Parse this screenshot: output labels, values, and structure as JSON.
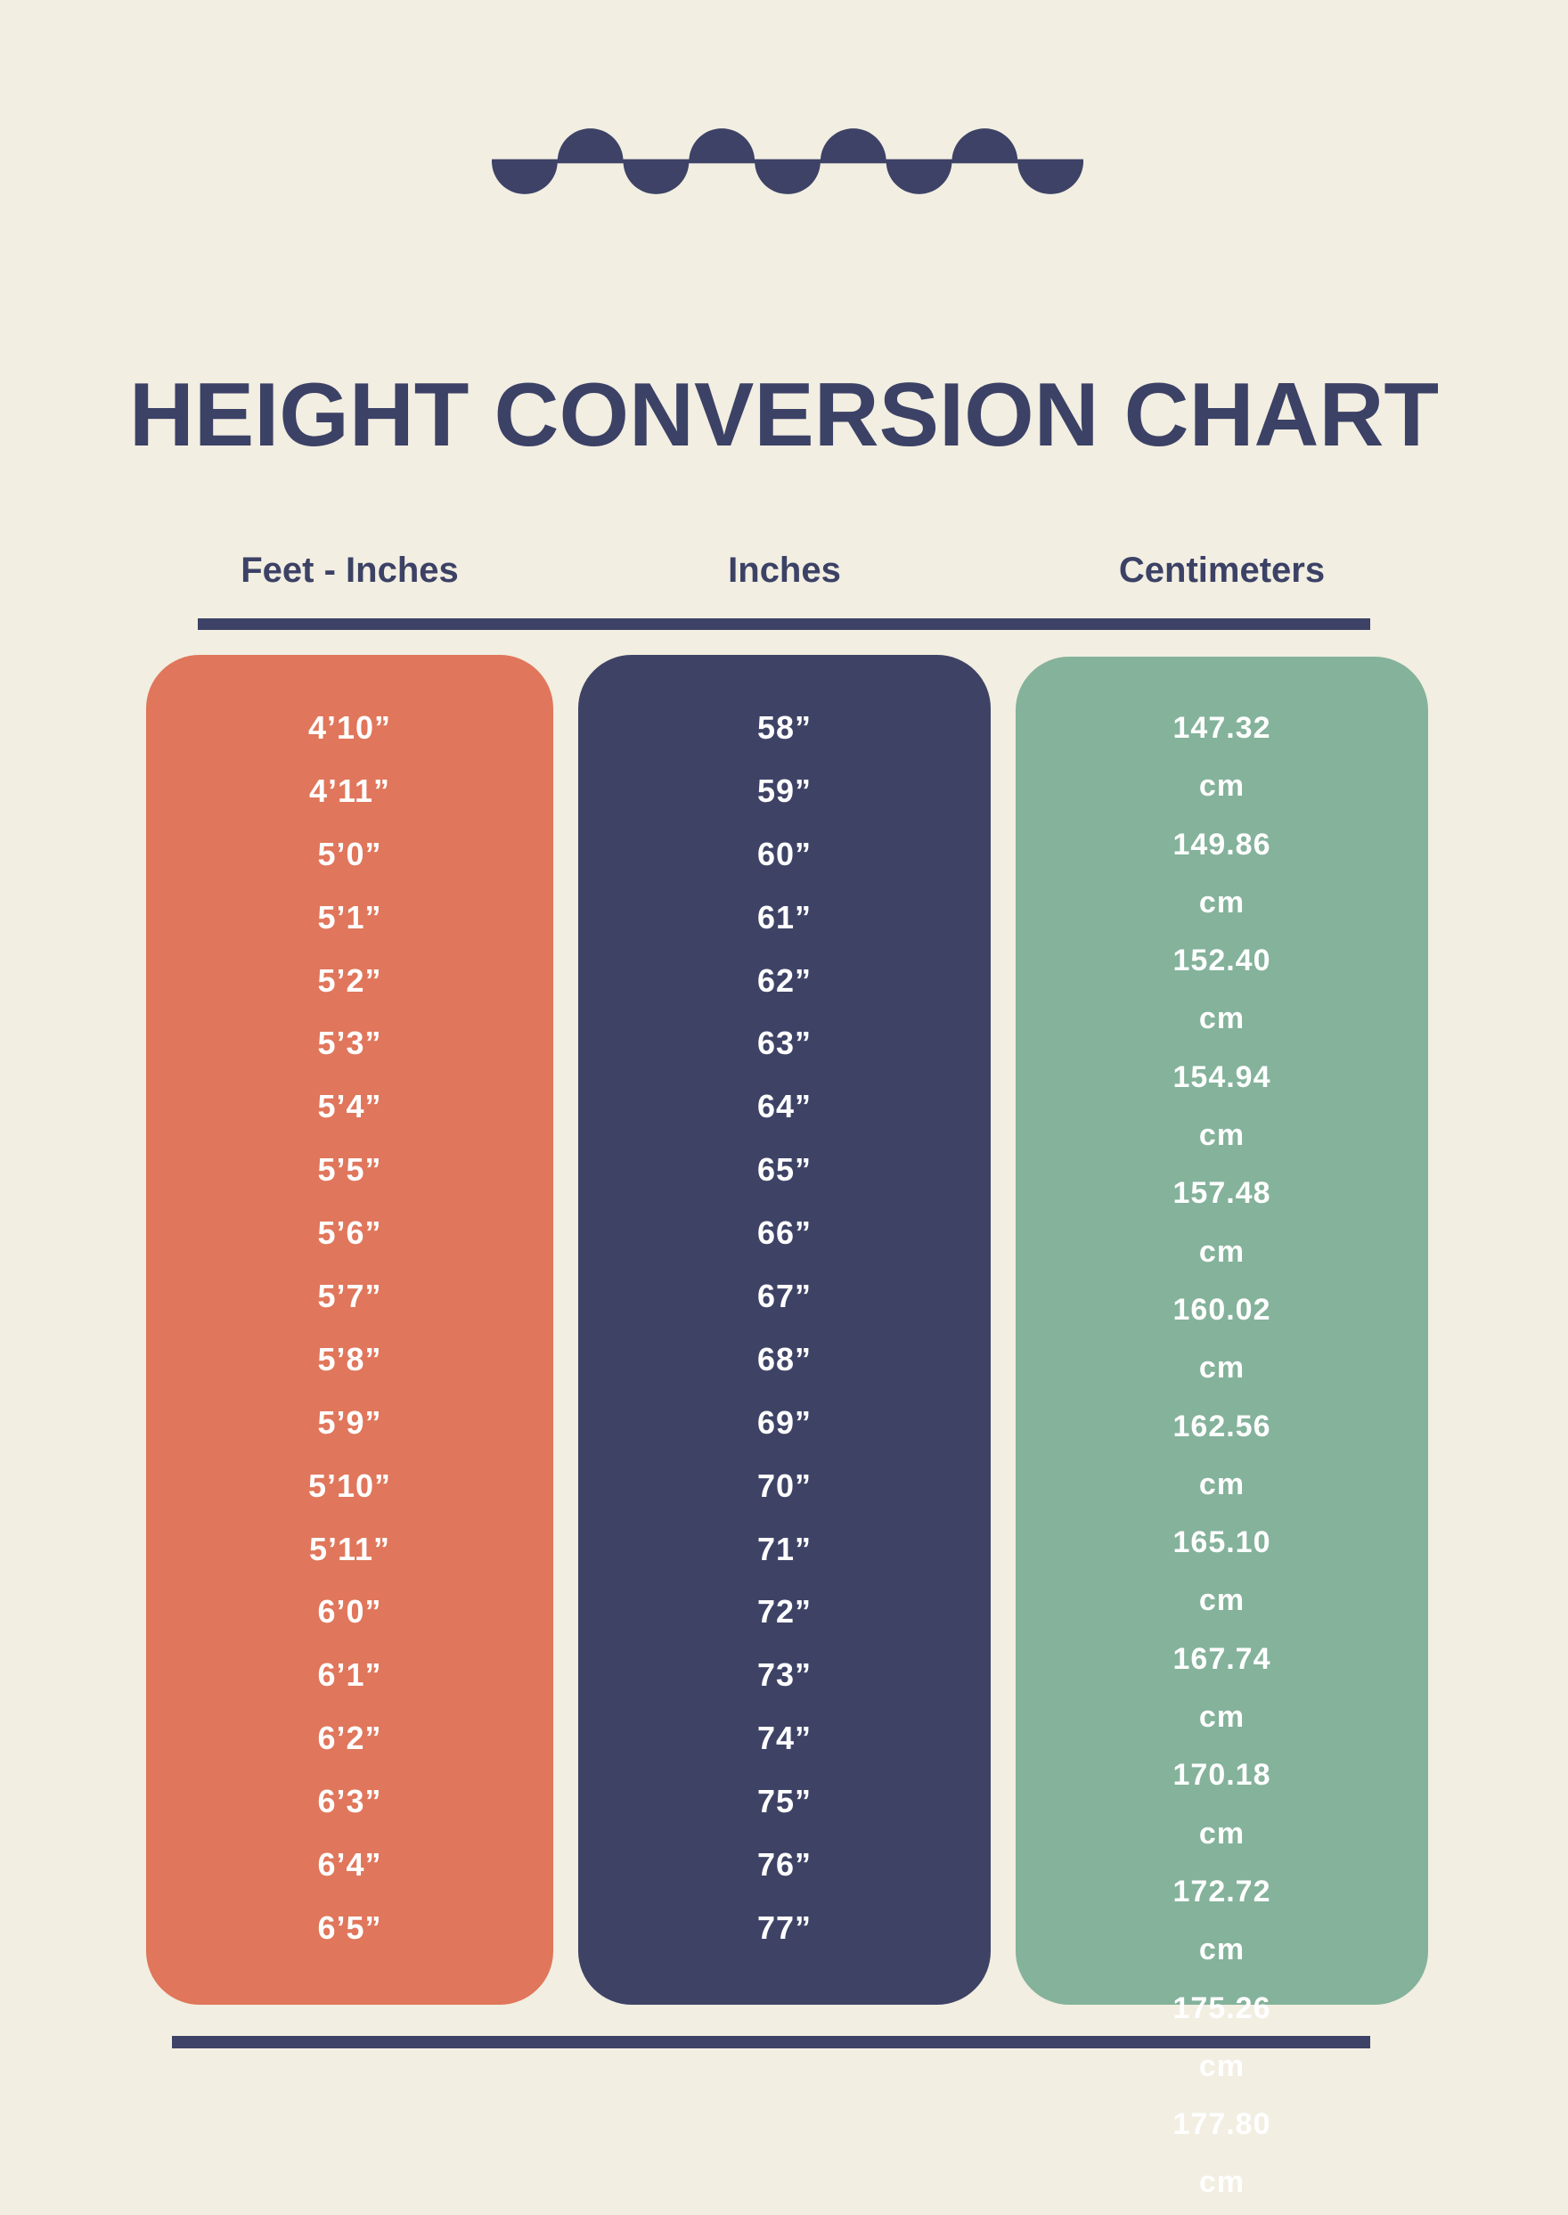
{
  "page": {
    "background": "#f2eee1",
    "text_dark": "#3c4166",
    "text_light": "#ffffff",
    "rule_color": "#3d4266"
  },
  "decoration": {
    "wave_icon_color": "#3d4266"
  },
  "title": {
    "text": "HEIGHT CONVERSION CHART"
  },
  "columns": [
    {
      "id": "feet-inches",
      "header": "Feet - Inches",
      "color": "#e0765b",
      "values": [
        "4’10”",
        "4’11”",
        "5’0”",
        "5’1”",
        "5’2”",
        "5’3”",
        "5’4”",
        "5’5”",
        "5’6”",
        "5’7”",
        "5’8”",
        "5’9”",
        "5’10”",
        "5’11”",
        "6’0”",
        "6’1”",
        "6’2”",
        "6’3”",
        "6’4”",
        "6’5”"
      ]
    },
    {
      "id": "inches",
      "header": "Inches",
      "color": "#3e4366",
      "values": [
        "58”",
        "59”",
        "60”",
        "61”",
        "62”",
        "63”",
        "64”",
        "65”",
        "66”",
        "67”",
        "68”",
        "69”",
        "70”",
        "71”",
        "72”",
        "73”",
        "74”",
        "75”",
        "76”",
        "77”"
      ]
    },
    {
      "id": "centimeters",
      "header": "Centimeters",
      "color": "#84b29b",
      "unit": "cm",
      "values": [
        "147.32",
        "149.86",
        "152.40",
        "154.94",
        "157.48",
        "160.02",
        "162.56",
        "165.10",
        "167.74",
        "170.18",
        "172.72",
        "175.26",
        "177.80"
      ]
    }
  ],
  "chart_data": {
    "type": "table",
    "title": "HEIGHT CONVERSION CHART",
    "columns": [
      "Feet - Inches",
      "Inches",
      "Centimeters"
    ],
    "feet_inches": [
      "4’10”",
      "4’11”",
      "5’0”",
      "5’1”",
      "5’2”",
      "5’3”",
      "5’4”",
      "5’5”",
      "5’6”",
      "5’7”",
      "5’8”",
      "5’9”",
      "5’10”",
      "5’11”",
      "6’0”",
      "6’1”",
      "6’2”",
      "6’3”",
      "6’4”",
      "6’5”"
    ],
    "inches": [
      58,
      59,
      60,
      61,
      62,
      63,
      64,
      65,
      66,
      67,
      68,
      69,
      70,
      71,
      72,
      73,
      74,
      75,
      76,
      77
    ],
    "centimeters_visible": [
      147.32,
      149.86,
      152.4,
      154.94,
      157.48,
      160.02,
      162.56,
      165.1,
      167.74,
      170.18,
      172.72,
      175.26,
      177.8
    ],
    "unit": "cm",
    "note_layout": "centimeter entries wrap to two lines and overflow below the green column"
  }
}
